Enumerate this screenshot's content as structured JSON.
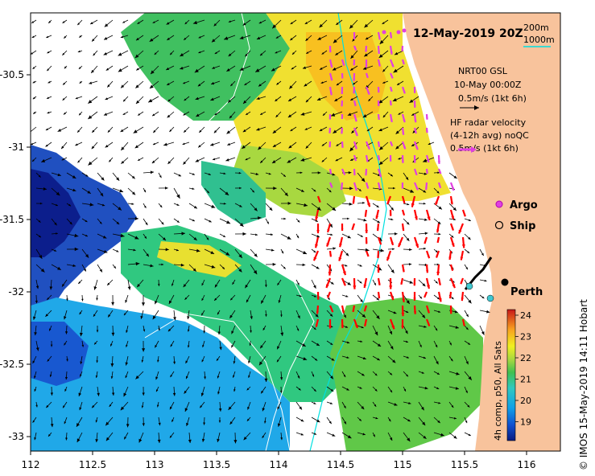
{
  "title": "12-May-2019 20Z",
  "legend": {
    "contour_200": "200m",
    "contour_1000": "1000m",
    "altimetry_line1": "NRT00 GSL",
    "altimetry_line2": "10-May 00:00Z",
    "altimetry_line3": "0.5m/s (1kt 6h)",
    "radar_line1": "HF radar velocity",
    "radar_line2": "(4-12h avg) noQC",
    "radar_line3": "0.5m/s (1kt 6h)",
    "argo": "Argo",
    "ship": "Ship"
  },
  "place_label": "Perth",
  "colorbar": {
    "title": "4h comp, p50, All Sats",
    "ticks": [
      "24",
      "23",
      "22",
      "21",
      "20",
      "19"
    ]
  },
  "credit": "© IMOS 15-May-2019 14:11 Hobart",
  "axes": {
    "x_ticks": [
      "112",
      "112.5",
      "113",
      "113.5",
      "114",
      "114.5",
      "115",
      "115.5",
      "116"
    ],
    "y_ticks": [
      "-30.5",
      "-31",
      "-31.5",
      "-32",
      "-32.5",
      "-33"
    ]
  },
  "colors": {
    "land": "#f8c39c",
    "argo": "#e040e0",
    "radar_arrow": "#ff0000",
    "altimetry_arrow": "#000000",
    "contour_200": "#00e0e0",
    "contour_1000": "#ffffff"
  }
}
